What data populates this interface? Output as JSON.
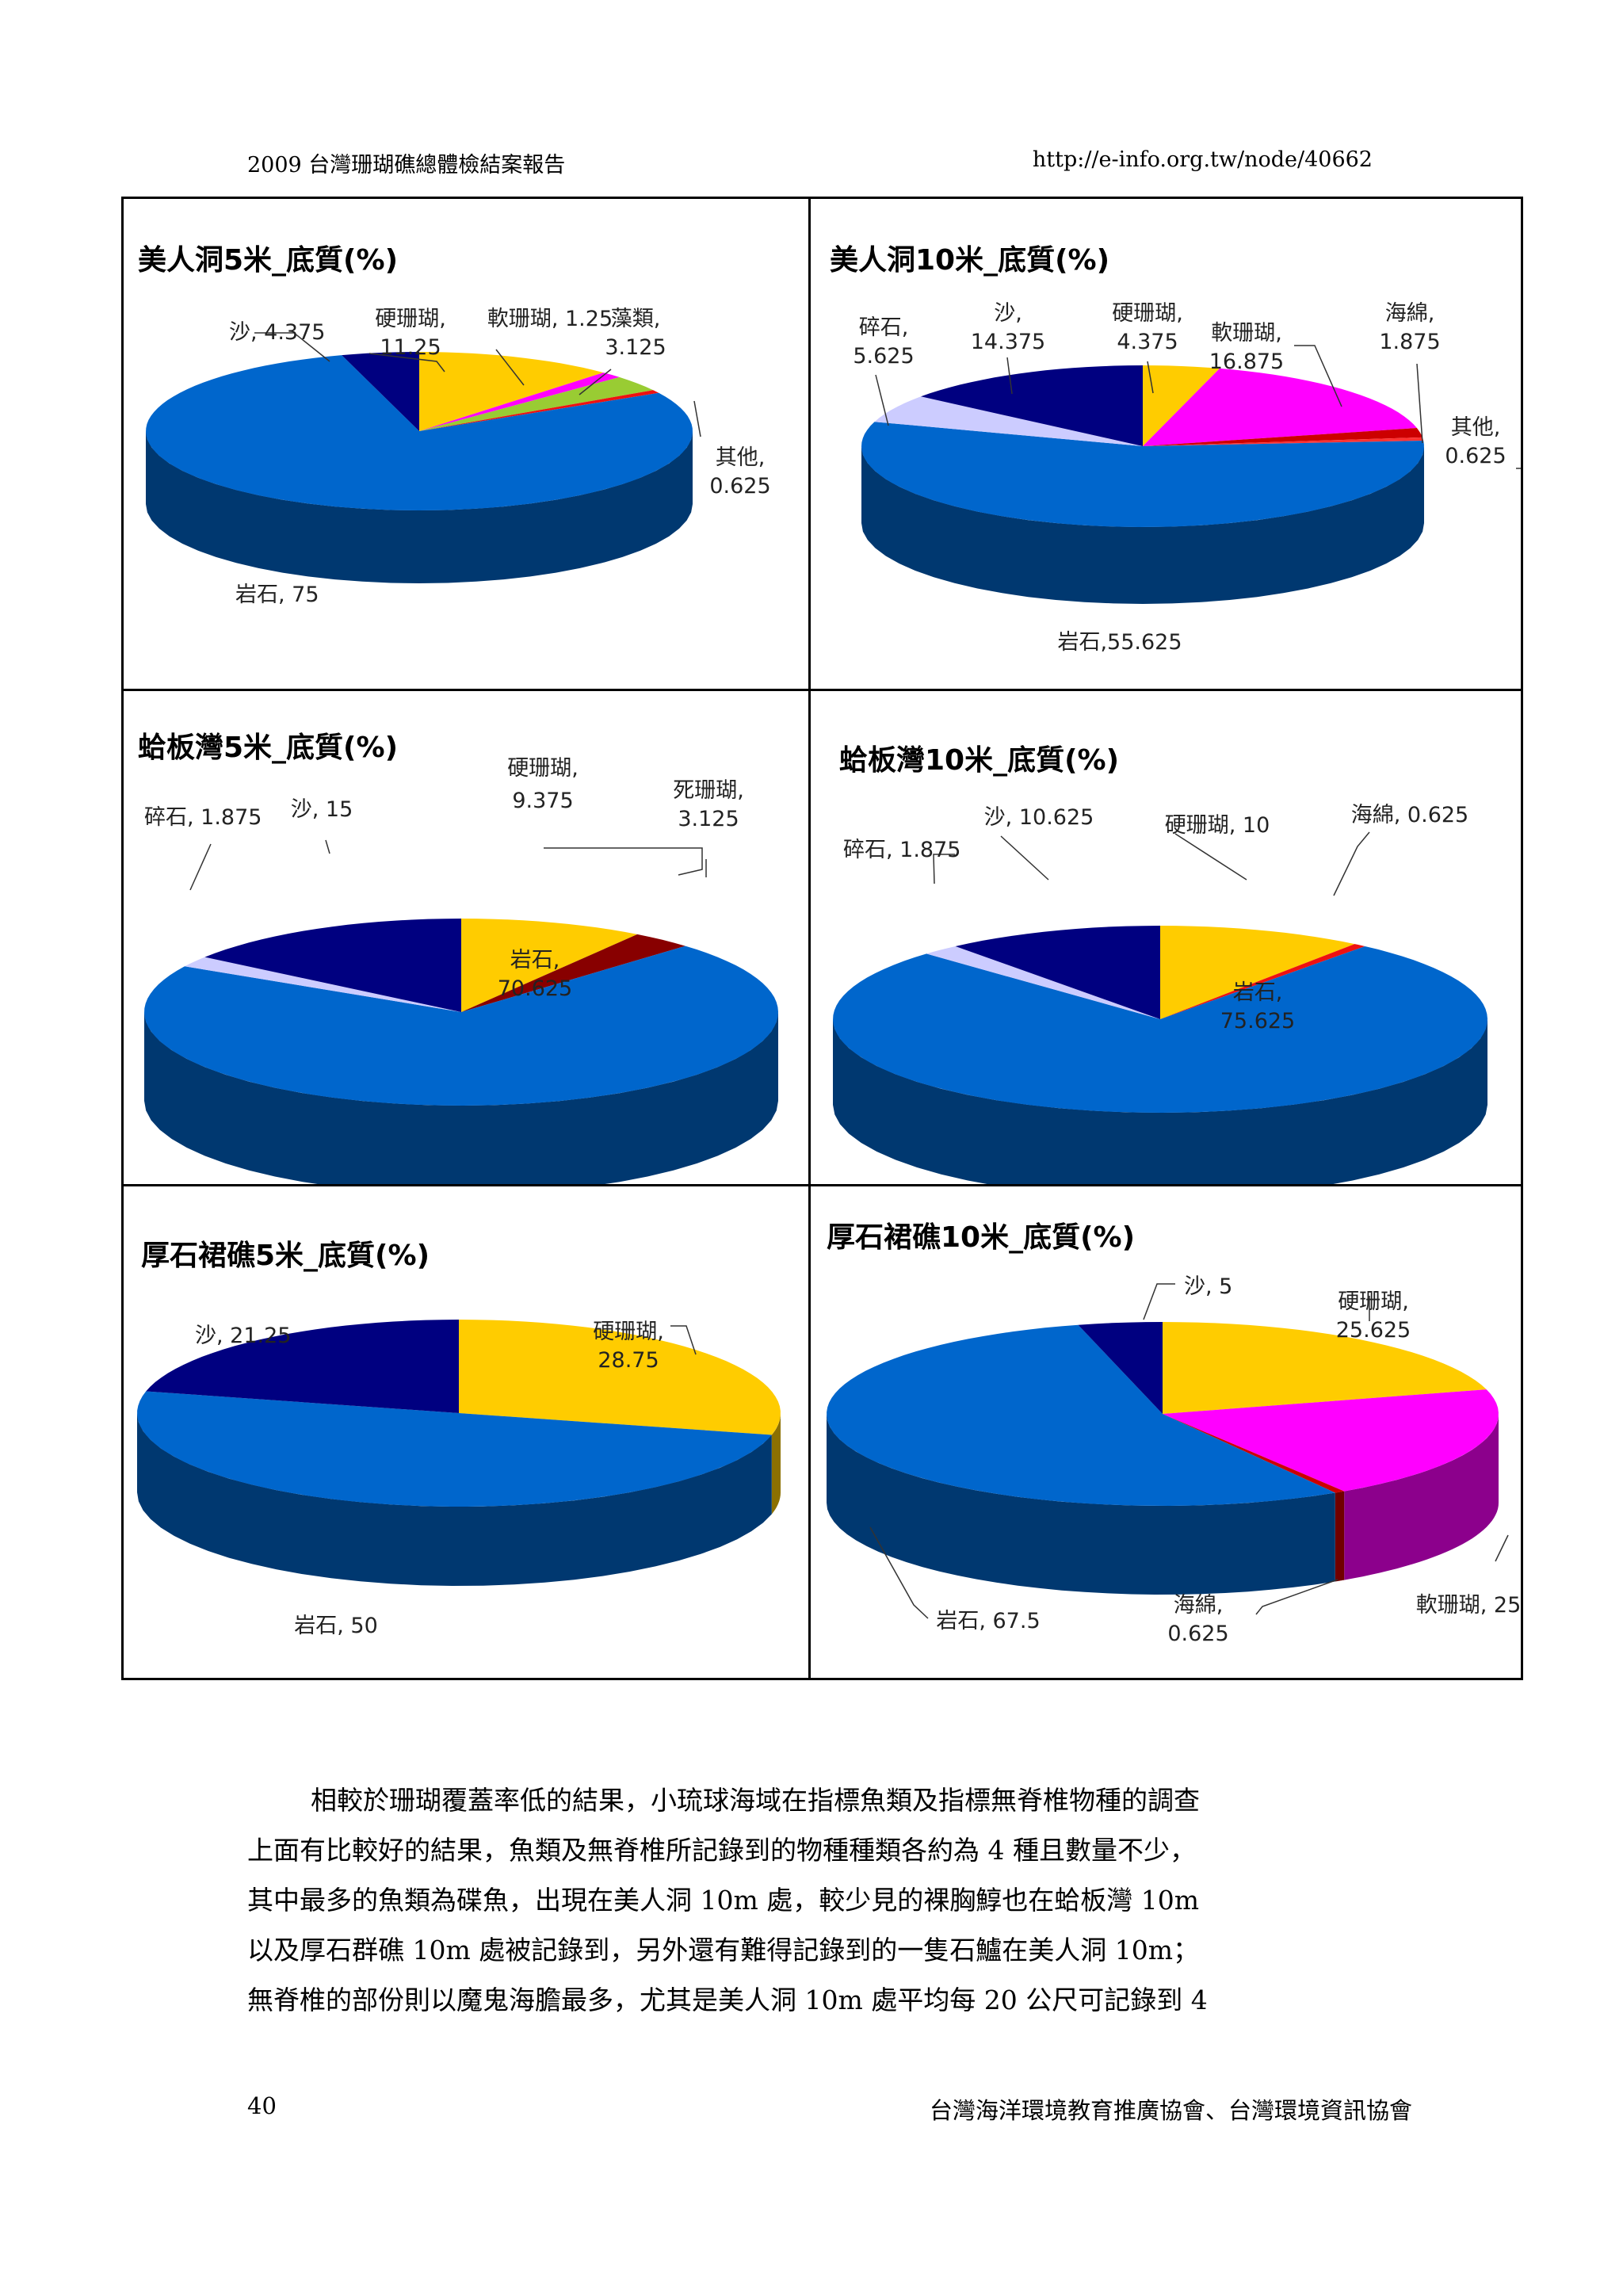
{
  "header": {
    "title": "2009 台灣珊瑚礁總體檢結案報告",
    "url": "http://e-info.org.tw/node/40662"
  },
  "chart_data": [
    {
      "type": "pie",
      "title": "美人洞5米_底質(%)",
      "series": [
        {
          "values": [
            {
              "label": "硬珊瑚",
              "value": 11.25,
              "color": "#FFCC00"
            },
            {
              "label": "軟珊瑚",
              "value": 1.25,
              "color": "#FF00FF"
            },
            {
              "label": "藻類",
              "value": 3.125,
              "color": "#99CC33"
            },
            {
              "label": "其他",
              "value": 0.625,
              "color": "#EE1111"
            },
            {
              "label": "岩石",
              "value": 75,
              "color": "#0066CC"
            },
            {
              "label": "沙",
              "value": 4.375,
              "color": "#000080"
            }
          ]
        }
      ],
      "labels": [
        "硬珊瑚,",
        "11.25",
        "軟珊瑚, 1.25",
        "藻類,",
        "3.125",
        "其他,",
        "0.625",
        "岩石, 75",
        "沙, 4.375"
      ]
    },
    {
      "type": "pie",
      "title": "美人洞10米_底質(%)",
      "series": [
        {
          "values": [
            {
              "label": "硬珊瑚",
              "value": 4.375,
              "color": "#FFCC00"
            },
            {
              "label": "軟珊瑚",
              "value": 16.875,
              "color": "#FF00FF"
            },
            {
              "label": "海綿",
              "value": 1.875,
              "color": "#CC0000"
            },
            {
              "label": "其他",
              "value": 0.625,
              "color": "#FF3333"
            },
            {
              "label": "岩石",
              "value": 55.625,
              "color": "#0066CC"
            },
            {
              "label": "碎石",
              "value": 5.625,
              "color": "#CCCCFF"
            },
            {
              "label": "沙",
              "value": 14.375,
              "color": "#000080"
            }
          ]
        }
      ],
      "labels": [
        "碎石,",
        "5.625",
        "沙,",
        "14.375",
        "硬珊瑚,",
        "4.375",
        "軟珊瑚,",
        "16.875",
        "海綿,",
        "1.875",
        "其他,",
        "0.625",
        "岩石,55.625"
      ]
    },
    {
      "type": "pie",
      "title": "蛤板灣5米_底質(%)",
      "series": [
        {
          "values": [
            {
              "label": "硬珊瑚",
              "value": 9.375,
              "color": "#FFCC00"
            },
            {
              "label": "死珊瑚",
              "value": 3.125,
              "color": "#880000"
            },
            {
              "label": "岩石",
              "value": 70.625,
              "color": "#0066CC"
            },
            {
              "label": "碎石",
              "value": 1.875,
              "color": "#CCCCFF"
            },
            {
              "label": "沙",
              "value": 15,
              "color": "#000080"
            }
          ]
        }
      ],
      "labels": [
        "碎石, 1.875",
        "沙, 15",
        "硬珊瑚,",
        "9.375",
        "死珊瑚,",
        "3.125",
        "岩石,",
        "70.625"
      ]
    },
    {
      "type": "pie",
      "title": "蛤板灣10米_底質(%)",
      "series": [
        {
          "values": [
            {
              "label": "硬珊瑚",
              "value": 10,
              "color": "#FFCC00"
            },
            {
              "label": "海綿",
              "value": 0.625,
              "color": "#EE1111"
            },
            {
              "label": "岩石",
              "value": 75.625,
              "color": "#0066CC"
            },
            {
              "label": "碎石",
              "value": 1.875,
              "color": "#CCCCFF"
            },
            {
              "label": "沙",
              "value": 10.625,
              "color": "#000080"
            }
          ]
        }
      ],
      "labels": [
        "沙, 10.625",
        "硬珊瑚, 10",
        "海綿, 0.625",
        "碎石, 1.875",
        "岩石,",
        "75.625"
      ]
    },
    {
      "type": "pie",
      "title": "厚石裙礁5米_底質(%)",
      "series": [
        {
          "values": [
            {
              "label": "硬珊瑚",
              "value": 28.75,
              "color": "#FFCC00"
            },
            {
              "label": "岩石",
              "value": 50,
              "color": "#0066CC"
            },
            {
              "label": "沙",
              "value": 21.25,
              "color": "#000080"
            }
          ]
        }
      ],
      "labels": [
        "沙, 21.25",
        "硬珊瑚,",
        "28.75",
        "岩石, 50"
      ]
    },
    {
      "type": "pie",
      "title": "厚石裙礁10米_底質(%)",
      "series": [
        {
          "values": [
            {
              "label": "硬珊瑚",
              "value": 25.625,
              "color": "#FFCC00"
            },
            {
              "label": "軟珊瑚",
              "value": 25,
              "color": "#FF00FF"
            },
            {
              "label": "海綿",
              "value": 0.625,
              "color": "#CC0000"
            },
            {
              "label": "岩石",
              "value": 67.5,
              "color": "#0066CC"
            },
            {
              "label": "沙",
              "value": 5,
              "color": "#000080"
            }
          ]
        }
      ],
      "labels": [
        "沙, 5",
        "硬珊瑚,",
        "25.625",
        "軟珊瑚, 25",
        "海綿,",
        "0.625",
        "岩石, 67.5"
      ]
    }
  ],
  "body": {
    "lines": [
      "相較於珊瑚覆蓋率低的結果，小琉球海域在指標魚類及指標無脊椎物種的調查",
      "上面有比較好的結果，魚類及無脊椎所記錄到的物種種類各約為 4 種且數量不少，",
      "其中最多的魚類為碟魚，出現在美人洞 10m 處，較少見的裸胸鯙也在蛤板灣 10m",
      "以及厚石群礁 10m 處被記錄到，另外還有難得記錄到的一隻石鱸在美人洞 10m；",
      "無脊椎的部份則以魔鬼海膽最多，尤其是美人洞 10m 處平均每 20 公尺可記錄到 4"
    ]
  },
  "footer": {
    "page_number": "40",
    "org": "台灣海洋環境教育推廣協會、台灣環境資訊協會"
  }
}
